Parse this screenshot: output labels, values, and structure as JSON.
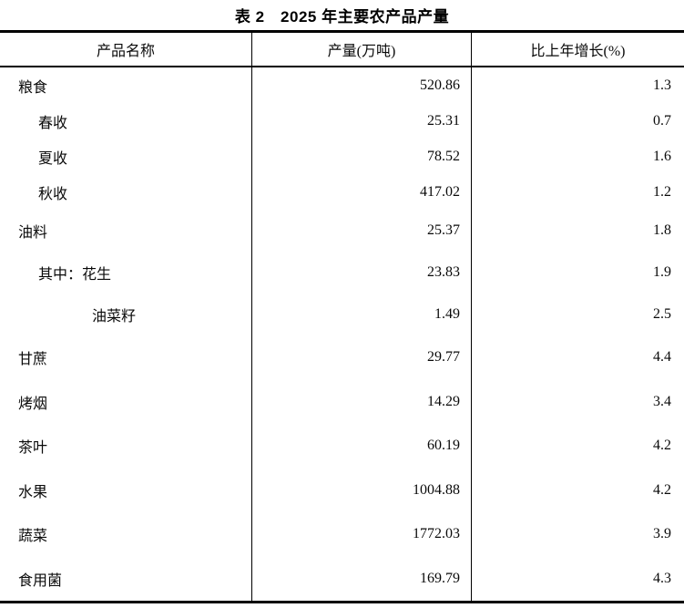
{
  "table": {
    "title": "表 2　2025 年主要农产品产量",
    "columns": [
      "产品名称",
      "产量(万吨)",
      "比上年增长(%)"
    ],
    "rows": [
      {
        "name": "粮食",
        "indent": 0,
        "output": "520.86",
        "growth": "1.3"
      },
      {
        "name": "春收",
        "indent": 1,
        "output": "25.31",
        "growth": "0.7"
      },
      {
        "name": "夏收",
        "indent": 1,
        "output": "78.52",
        "growth": "1.6"
      },
      {
        "name": "秋收",
        "indent": 1,
        "output": "417.02",
        "growth": "1.2"
      },
      {
        "name": "油料",
        "indent": 0,
        "output": "25.37",
        "growth": "1.8"
      },
      {
        "name": "其中：花生",
        "indent": 1,
        "output": "23.83",
        "growth": "1.9"
      },
      {
        "name": "油菜籽",
        "indent": 2,
        "output": "1.49",
        "growth": "2.5"
      },
      {
        "name": "甘蔗",
        "indent": 0,
        "output": "29.77",
        "growth": "4.4"
      },
      {
        "name": "烤烟",
        "indent": 0,
        "output": "14.29",
        "growth": "3.4"
      },
      {
        "name": "茶叶",
        "indent": 0,
        "output": "60.19",
        "growth": "4.2"
      },
      {
        "name": "水果",
        "indent": 0,
        "output": "1004.88",
        "growth": "4.2"
      },
      {
        "name": "蔬菜",
        "indent": 0,
        "output": "1772.03",
        "growth": "3.9"
      },
      {
        "name": "食用菌",
        "indent": 0,
        "output": "169.79",
        "growth": "4.3"
      }
    ]
  }
}
